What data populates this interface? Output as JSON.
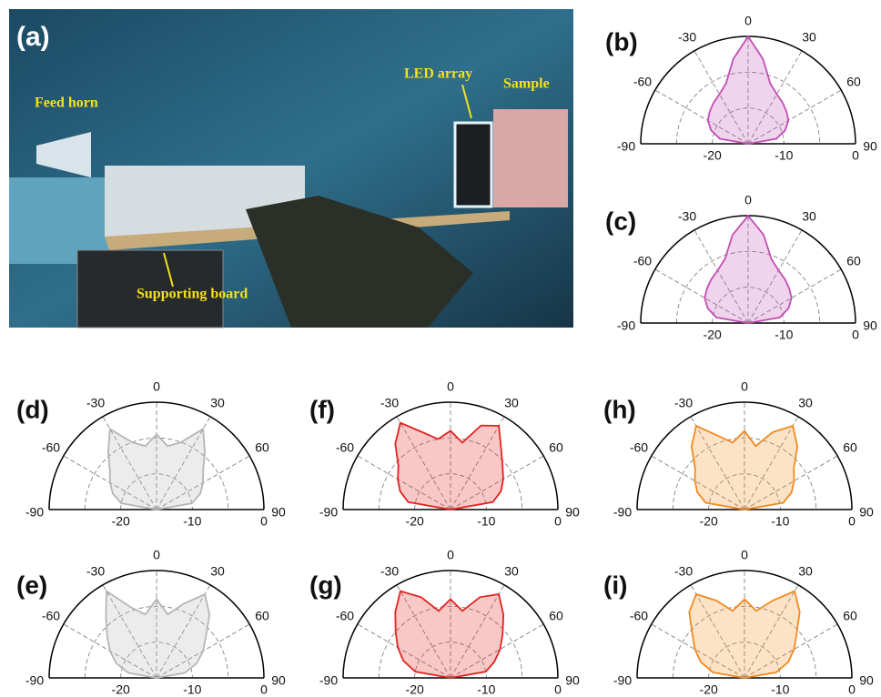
{
  "photo": {
    "label": "(a)",
    "notes": [
      "Feed horn",
      "LED array",
      "Sample",
      "Supporting board"
    ]
  },
  "chart_data": [
    {
      "type": "polar",
      "panel": "(b)",
      "color": "#c24fb3",
      "theta": [
        -90,
        -80,
        -70,
        -60,
        -50,
        -40,
        -30,
        -20,
        -10,
        0,
        10,
        20,
        30,
        40,
        50,
        60,
        70,
        80,
        90
      ],
      "values": [
        -30,
        -22,
        -19,
        -17,
        -16,
        -15,
        -14,
        -12,
        -6,
        0,
        -6,
        -12,
        -14,
        -15,
        -16,
        -17,
        -19,
        -22,
        -30
      ],
      "thetalim": [
        -90,
        90
      ],
      "thetaticks": [
        -90,
        -60,
        -30,
        0,
        30,
        60,
        90
      ],
      "rlim": [
        -30,
        0
      ],
      "rticks": [
        -20,
        -10,
        0
      ]
    },
    {
      "type": "polar",
      "panel": "(c)",
      "color": "#c24fb3",
      "theta": [
        -90,
        -80,
        -70,
        -60,
        -50,
        -40,
        -30,
        -20,
        -10,
        0,
        10,
        20,
        30,
        40,
        50,
        60,
        70,
        80,
        90
      ],
      "values": [
        -30,
        -21,
        -18,
        -16,
        -15,
        -14,
        -13,
        -11,
        -5,
        0,
        -5,
        -11,
        -13,
        -14,
        -15,
        -16,
        -18,
        -21,
        -30
      ],
      "thetalim": [
        -90,
        90
      ],
      "thetaticks": [
        -90,
        -60,
        -30,
        0,
        30,
        60,
        90
      ],
      "rlim": [
        -30,
        0
      ],
      "rticks": [
        -20,
        -10,
        0
      ]
    },
    {
      "type": "polar",
      "panel": "(d)",
      "color": "#b5b5b5",
      "theta": [
        -90,
        -80,
        -70,
        -60,
        -50,
        -40,
        -30,
        -20,
        -10,
        0,
        10,
        20,
        30,
        40,
        50,
        60,
        70,
        80,
        90
      ],
      "values": [
        -30,
        -20,
        -17,
        -15,
        -13,
        -9,
        -4,
        -10,
        -12,
        -9,
        -12,
        -10,
        -4,
        -9,
        -13,
        -15,
        -17,
        -20,
        -30
      ],
      "thetalim": [
        -90,
        90
      ],
      "thetaticks": [
        -90,
        -60,
        -30,
        0,
        30,
        60,
        90
      ],
      "rlim": [
        -30,
        0
      ],
      "rticks": [
        -20,
        -10,
        0
      ]
    },
    {
      "type": "polar",
      "panel": "(e)",
      "color": "#b5b5b5",
      "theta": [
        -90,
        -80,
        -70,
        -60,
        -50,
        -40,
        -30,
        -20,
        -10,
        0,
        10,
        20,
        30,
        40,
        50,
        60,
        70,
        80,
        90
      ],
      "values": [
        -30,
        -22,
        -18,
        -15,
        -12,
        -8,
        -2,
        -9,
        -12,
        -8,
        -12,
        -8,
        -3,
        -7,
        -12,
        -15,
        -18,
        -22,
        -30
      ],
      "thetalim": [
        -90,
        90
      ],
      "thetaticks": [
        -90,
        -60,
        -30,
        0,
        30,
        60,
        90
      ],
      "rlim": [
        -30,
        0
      ],
      "rticks": [
        -20,
        -10,
        0
      ]
    },
    {
      "type": "polar",
      "panel": "(f)",
      "color": "#e3231f",
      "theta": [
        -90,
        -80,
        -70,
        -60,
        -50,
        -40,
        -30,
        -20,
        -10,
        0,
        10,
        20,
        30,
        40,
        50,
        60,
        70,
        80,
        90
      ],
      "values": [
        -30,
        -18,
        -15,
        -13,
        -11,
        -6,
        -2,
        -7,
        -10,
        -8,
        -11,
        -5,
        -3,
        -8,
        -11,
        -13,
        -15,
        -18,
        -30
      ],
      "thetalim": [
        -90,
        90
      ],
      "thetaticks": [
        -90,
        -60,
        -30,
        0,
        30,
        60,
        90
      ],
      "rlim": [
        -30,
        0
      ],
      "rticks": [
        -20,
        -10,
        0
      ]
    },
    {
      "type": "polar",
      "panel": "(g)",
      "color": "#e3231f",
      "theta": [
        -90,
        -80,
        -70,
        -60,
        -50,
        -40,
        -30,
        -20,
        -10,
        0,
        10,
        20,
        30,
        40,
        50,
        60,
        70,
        80,
        90
      ],
      "values": [
        -30,
        -20,
        -16,
        -13,
        -10,
        -6,
        -2,
        -6,
        -11,
        -8,
        -11,
        -6,
        -3,
        -7,
        -11,
        -14,
        -17,
        -20,
        -30
      ],
      "thetalim": [
        -90,
        90
      ],
      "thetaticks": [
        -90,
        -60,
        -30,
        0,
        30,
        60,
        90
      ],
      "rlim": [
        -30,
        0
      ],
      "rticks": [
        -20,
        -10,
        0
      ]
    },
    {
      "type": "polar",
      "panel": "(h)",
      "color": "#f28a1e",
      "theta": [
        -90,
        -80,
        -70,
        -60,
        -50,
        -40,
        -30,
        -20,
        -10,
        0,
        10,
        20,
        30,
        40,
        50,
        60,
        70,
        80,
        90
      ],
      "values": [
        -30,
        -19,
        -16,
        -14,
        -12,
        -7,
        -3,
        -8,
        -11,
        -8,
        -12,
        -7,
        -3,
        -7,
        -12,
        -14,
        -16,
        -19,
        -30
      ],
      "thetalim": [
        -90,
        90
      ],
      "thetaticks": [
        -90,
        -60,
        -30,
        0,
        30,
        60,
        90
      ],
      "rlim": [
        -30,
        0
      ],
      "rticks": [
        -20,
        -10,
        0
      ]
    },
    {
      "type": "polar",
      "panel": "(i)",
      "color": "#f28a1e",
      "theta": [
        -90,
        -80,
        -70,
        -60,
        -50,
        -40,
        -30,
        -20,
        -10,
        0,
        10,
        20,
        30,
        40,
        50,
        60,
        70,
        80,
        90
      ],
      "values": [
        -30,
        -21,
        -17,
        -14,
        -11,
        -6,
        -3,
        -7,
        -11,
        -8,
        -11,
        -7,
        -2,
        -6,
        -11,
        -14,
        -17,
        -21,
        -30
      ],
      "thetalim": [
        -90,
        90
      ],
      "thetaticks": [
        -90,
        -60,
        -30,
        0,
        30,
        60,
        90
      ],
      "rlim": [
        -30,
        0
      ],
      "rticks": [
        -20,
        -10,
        0
      ]
    }
  ]
}
